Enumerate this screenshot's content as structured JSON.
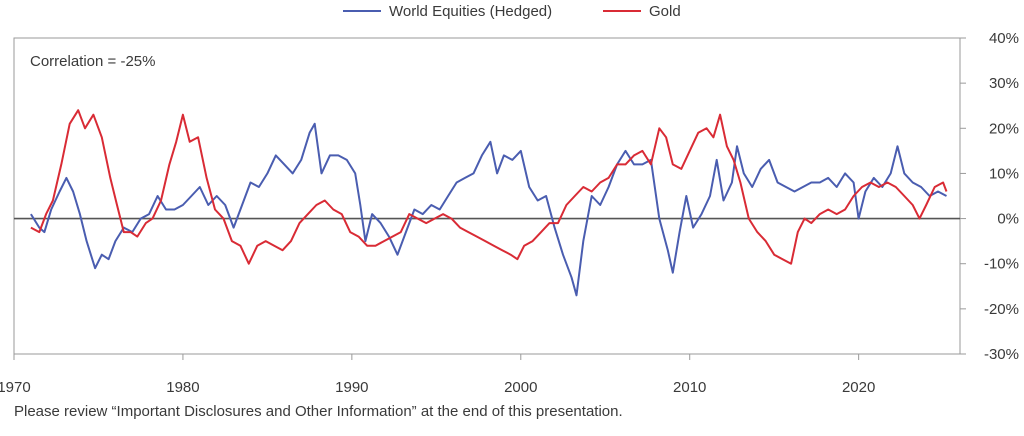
{
  "chart_data": {
    "type": "line",
    "title": "",
    "xlabel": "",
    "ylabel": "",
    "xlim": [
      1970,
      2026
    ],
    "ylim": [
      -30,
      40
    ],
    "y_axis_position": "right",
    "x_ticks": [
      1970,
      1980,
      1990,
      2000,
      2010,
      2020
    ],
    "x_tick_labels": [
      "1970",
      "1980",
      "1990",
      "2000",
      "2010",
      "2020"
    ],
    "y_ticks": [
      40,
      30,
      20,
      10,
      0,
      -10,
      -20,
      -30
    ],
    "y_tick_labels": [
      "40%",
      "30%",
      "20%",
      "10%",
      "0%",
      "-10%",
      "-20%",
      "-30%"
    ],
    "legend_position": "top-center",
    "annotation": "Correlation = -25%",
    "grid": false,
    "zero_line": true,
    "series": [
      {
        "name": "World Equities (Hedged)",
        "color": "#4a5db0",
        "points": [
          [
            1971.0,
            1
          ],
          [
            1971.5,
            -2
          ],
          [
            1971.8,
            -3
          ],
          [
            1972.2,
            2
          ],
          [
            1972.7,
            6
          ],
          [
            1973.1,
            9
          ],
          [
            1973.5,
            6
          ],
          [
            1973.9,
            1
          ],
          [
            1974.3,
            -5
          ],
          [
            1974.8,
            -11
          ],
          [
            1975.2,
            -8
          ],
          [
            1975.6,
            -9
          ],
          [
            1976.0,
            -5
          ],
          [
            1976.5,
            -2
          ],
          [
            1977.0,
            -3
          ],
          [
            1977.5,
            0
          ],
          [
            1978.0,
            1
          ],
          [
            1978.5,
            5
          ],
          [
            1979.0,
            2
          ],
          [
            1979.5,
            2
          ],
          [
            1980.0,
            3
          ],
          [
            1980.5,
            5
          ],
          [
            1981.0,
            7
          ],
          [
            1981.5,
            3
          ],
          [
            1982.0,
            5
          ],
          [
            1982.5,
            3
          ],
          [
            1983.0,
            -2
          ],
          [
            1983.5,
            3
          ],
          [
            1984.0,
            8
          ],
          [
            1984.5,
            7
          ],
          [
            1985.0,
            10
          ],
          [
            1985.5,
            14
          ],
          [
            1986.0,
            12
          ],
          [
            1986.5,
            10
          ],
          [
            1987.0,
            13
          ],
          [
            1987.5,
            19
          ],
          [
            1987.8,
            21
          ],
          [
            1988.2,
            10
          ],
          [
            1988.7,
            14
          ],
          [
            1989.2,
            14
          ],
          [
            1989.7,
            13
          ],
          [
            1990.2,
            10
          ],
          [
            1990.5,
            3
          ],
          [
            1990.8,
            -5
          ],
          [
            1991.2,
            1
          ],
          [
            1991.7,
            -1
          ],
          [
            1992.2,
            -4
          ],
          [
            1992.7,
            -8
          ],
          [
            1993.2,
            -3
          ],
          [
            1993.7,
            2
          ],
          [
            1994.2,
            1
          ],
          [
            1994.7,
            3
          ],
          [
            1995.2,
            2
          ],
          [
            1995.7,
            5
          ],
          [
            1996.2,
            8
          ],
          [
            1996.7,
            9
          ],
          [
            1997.2,
            10
          ],
          [
            1997.7,
            14
          ],
          [
            1998.2,
            17
          ],
          [
            1998.6,
            10
          ],
          [
            1999.0,
            14
          ],
          [
            1999.5,
            13
          ],
          [
            2000.0,
            15
          ],
          [
            2000.5,
            7
          ],
          [
            2001.0,
            4
          ],
          [
            2001.5,
            5
          ],
          [
            2002.0,
            -2
          ],
          [
            2002.5,
            -8
          ],
          [
            2003.0,
            -13
          ],
          [
            2003.3,
            -17
          ],
          [
            2003.7,
            -5
          ],
          [
            2004.2,
            5
          ],
          [
            2004.7,
            3
          ],
          [
            2005.2,
            7
          ],
          [
            2005.7,
            12
          ],
          [
            2006.2,
            15
          ],
          [
            2006.7,
            12
          ],
          [
            2007.2,
            12
          ],
          [
            2007.7,
            13
          ],
          [
            2008.2,
            0
          ],
          [
            2008.7,
            -7
          ],
          [
            2009.0,
            -12
          ],
          [
            2009.4,
            -3
          ],
          [
            2009.8,
            5
          ],
          [
            2010.2,
            -2
          ],
          [
            2010.7,
            1
          ],
          [
            2011.2,
            5
          ],
          [
            2011.6,
            13
          ],
          [
            2012.0,
            4
          ],
          [
            2012.5,
            8
          ],
          [
            2012.8,
            16
          ],
          [
            2013.2,
            10
          ],
          [
            2013.7,
            7
          ],
          [
            2014.2,
            11
          ],
          [
            2014.7,
            13
          ],
          [
            2015.2,
            8
          ],
          [
            2015.7,
            7
          ],
          [
            2016.2,
            6
          ],
          [
            2016.7,
            7
          ],
          [
            2017.2,
            8
          ],
          [
            2017.7,
            8
          ],
          [
            2018.2,
            9
          ],
          [
            2018.7,
            7
          ],
          [
            2019.2,
            10
          ],
          [
            2019.7,
            8
          ],
          [
            2020.0,
            0
          ],
          [
            2020.4,
            6
          ],
          [
            2020.9,
            9
          ],
          [
            2021.4,
            7
          ],
          [
            2021.9,
            10
          ],
          [
            2022.3,
            16
          ],
          [
            2022.7,
            10
          ],
          [
            2023.2,
            8
          ],
          [
            2023.7,
            7
          ],
          [
            2024.2,
            5
          ],
          [
            2024.7,
            6
          ],
          [
            2025.2,
            5
          ]
        ]
      },
      {
        "name": "Gold",
        "color": "#d92b35",
        "points": [
          [
            1971.0,
            -2
          ],
          [
            1971.5,
            -3
          ],
          [
            1971.9,
            1
          ],
          [
            1972.3,
            4
          ],
          [
            1972.8,
            12
          ],
          [
            1973.3,
            21
          ],
          [
            1973.8,
            24
          ],
          [
            1974.2,
            20
          ],
          [
            1974.7,
            23
          ],
          [
            1975.2,
            18
          ],
          [
            1975.7,
            9
          ],
          [
            1976.1,
            3
          ],
          [
            1976.5,
            -3
          ],
          [
            1976.9,
            -3
          ],
          [
            1977.3,
            -4
          ],
          [
            1977.8,
            -1
          ],
          [
            1978.2,
            0
          ],
          [
            1978.7,
            4
          ],
          [
            1979.2,
            12
          ],
          [
            1979.6,
            17
          ],
          [
            1980.0,
            23
          ],
          [
            1980.4,
            17
          ],
          [
            1980.9,
            18
          ],
          [
            1981.4,
            9
          ],
          [
            1981.9,
            2
          ],
          [
            1982.4,
            0
          ],
          [
            1982.9,
            -5
          ],
          [
            1983.4,
            -6
          ],
          [
            1983.9,
            -10
          ],
          [
            1984.4,
            -6
          ],
          [
            1984.9,
            -5
          ],
          [
            1985.4,
            -6
          ],
          [
            1985.9,
            -7
          ],
          [
            1986.4,
            -5
          ],
          [
            1986.9,
            -1
          ],
          [
            1987.4,
            1
          ],
          [
            1987.9,
            3
          ],
          [
            1988.4,
            4
          ],
          [
            1988.9,
            2
          ],
          [
            1989.4,
            1
          ],
          [
            1989.9,
            -3
          ],
          [
            1990.4,
            -4
          ],
          [
            1990.9,
            -6
          ],
          [
            1991.4,
            -6
          ],
          [
            1991.9,
            -5
          ],
          [
            1992.4,
            -4
          ],
          [
            1992.9,
            -3
          ],
          [
            1993.4,
            1
          ],
          [
            1993.9,
            0
          ],
          [
            1994.4,
            -1
          ],
          [
            1994.9,
            0
          ],
          [
            1995.4,
            1
          ],
          [
            1995.9,
            0
          ],
          [
            1996.4,
            -2
          ],
          [
            1996.9,
            -3
          ],
          [
            1997.4,
            -4
          ],
          [
            1997.9,
            -5
          ],
          [
            1998.4,
            -6
          ],
          [
            1998.9,
            -7
          ],
          [
            1999.4,
            -8
          ],
          [
            1999.8,
            -9
          ],
          [
            2000.2,
            -6
          ],
          [
            2000.7,
            -5
          ],
          [
            2001.2,
            -3
          ],
          [
            2001.7,
            -1
          ],
          [
            2002.2,
            -1
          ],
          [
            2002.7,
            3
          ],
          [
            2003.2,
            5
          ],
          [
            2003.7,
            7
          ],
          [
            2004.2,
            6
          ],
          [
            2004.7,
            8
          ],
          [
            2005.2,
            9
          ],
          [
            2005.7,
            12
          ],
          [
            2006.2,
            12
          ],
          [
            2006.7,
            14
          ],
          [
            2007.2,
            15
          ],
          [
            2007.7,
            12
          ],
          [
            2008.2,
            20
          ],
          [
            2008.6,
            18
          ],
          [
            2009.0,
            12
          ],
          [
            2009.5,
            11
          ],
          [
            2010.0,
            15
          ],
          [
            2010.5,
            19
          ],
          [
            2011.0,
            20
          ],
          [
            2011.4,
            18
          ],
          [
            2011.8,
            23
          ],
          [
            2012.2,
            16
          ],
          [
            2012.6,
            13
          ],
          [
            2013.0,
            8
          ],
          [
            2013.5,
            0
          ],
          [
            2014.0,
            -3
          ],
          [
            2014.5,
            -5
          ],
          [
            2015.0,
            -8
          ],
          [
            2015.5,
            -9
          ],
          [
            2016.0,
            -10
          ],
          [
            2016.4,
            -3
          ],
          [
            2016.8,
            0
          ],
          [
            2017.2,
            -1
          ],
          [
            2017.7,
            1
          ],
          [
            2018.2,
            2
          ],
          [
            2018.7,
            1
          ],
          [
            2019.2,
            2
          ],
          [
            2019.7,
            5
          ],
          [
            2020.2,
            7
          ],
          [
            2020.7,
            8
          ],
          [
            2021.2,
            7
          ],
          [
            2021.7,
            8
          ],
          [
            2022.2,
            7
          ],
          [
            2022.7,
            5
          ],
          [
            2023.2,
            3
          ],
          [
            2023.6,
            0
          ],
          [
            2024.0,
            3
          ],
          [
            2024.5,
            7
          ],
          [
            2025.0,
            8
          ],
          [
            2025.2,
            6
          ]
        ]
      }
    ]
  },
  "footnote": "Please review “Important Disclosures and Other Information” at the end of this presentation."
}
